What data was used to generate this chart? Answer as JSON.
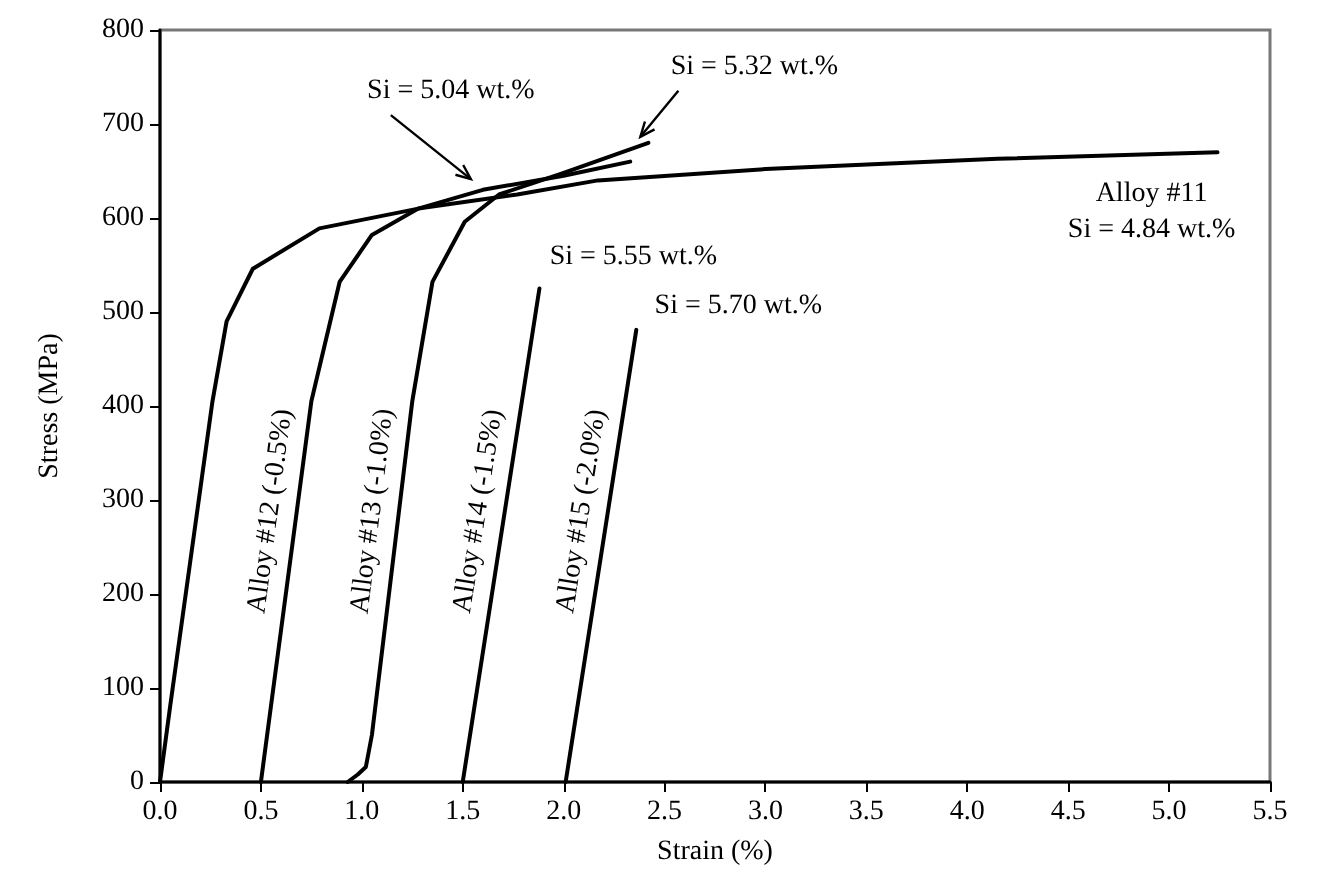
{
  "chart_data": {
    "type": "line",
    "xlabel": "Strain (%)",
    "ylabel": "Stress (MPa)",
    "xlim": [
      0,
      5.5
    ],
    "xticks": [
      {
        "value": 0,
        "label": "0.0"
      },
      {
        "value": 0.5,
        "label": "0.5"
      },
      {
        "value": 1,
        "label": "1.0"
      },
      {
        "value": 1.5,
        "label": "1.5"
      },
      {
        "value": 2,
        "label": "2.0"
      },
      {
        "value": 2.5,
        "label": "2.5"
      },
      {
        "value": 3,
        "label": "3.0"
      },
      {
        "value": 3.5,
        "label": "3.5"
      },
      {
        "value": 4,
        "label": "4.0"
      },
      {
        "value": 4.5,
        "label": "4.5"
      },
      {
        "value": 5,
        "label": "5.0"
      },
      {
        "value": 5.5,
        "label": "5.5"
      }
    ],
    "ylim": [
      0,
      800
    ],
    "yticks": [
      0,
      100,
      200,
      300,
      400,
      500,
      600,
      700,
      800
    ],
    "grid": false,
    "legend": false,
    "marker": "none",
    "line_style": "solid",
    "series": [
      {
        "color": "#000000",
        "x": [
          0,
          0.05,
          0.26,
          0.33,
          0.46,
          0.79,
          1.28,
          1.77,
          2.17,
          3,
          4.15,
          5.24
        ],
        "values": [
          0,
          80,
          405,
          490,
          546,
          589,
          610,
          625,
          640,
          652,
          663,
          670
        ]
      },
      {
        "name": "Alloy #12 (-0.5%)",
        "color": "#000000",
        "x": [
          0.5,
          0.75,
          0.89,
          1.05,
          1.28,
          1.6,
          2.0,
          2.33
        ],
        "values": [
          0,
          405,
          532,
          582,
          610,
          630,
          645,
          660
        ]
      },
      {
        "name": "Alloy #13 (-1.0%)",
        "color": "#000000",
        "x": [
          0.93,
          0.98,
          1.02,
          1.05,
          1.25,
          1.35,
          1.51,
          1.68,
          2.0,
          2.42
        ],
        "values": [
          0,
          8,
          16,
          50,
          405,
          532,
          596,
          625,
          648,
          680
        ]
      },
      {
        "name": "Alloy #14 (-1.5%)",
        "color": "#000000",
        "x": [
          1.5,
          1.88
        ],
        "values": [
          0,
          525
        ]
      },
      {
        "name": "Alloy #15 (-2.0%)",
        "color": "#000000",
        "x": [
          2.01,
          2.36
        ],
        "values": [
          0,
          481
        ]
      }
    ],
    "annotations": [
      {
        "text": "Si = 5.04 wt.%",
        "x": 1.56,
        "y": 635
      },
      {
        "text": "Si = 5.32 wt.%",
        "x": 2.4,
        "y": 680
      },
      {
        "text": "Si = 5.55 wt.%",
        "x": 1.88,
        "y": 525
      },
      {
        "text": "Si = 5.70 wt.%",
        "x": 2.36,
        "y": 481
      },
      {
        "text": "Alloy #11\nSi = 4.84 wt.%",
        "x": 5.24,
        "y": 670
      }
    ]
  }
}
